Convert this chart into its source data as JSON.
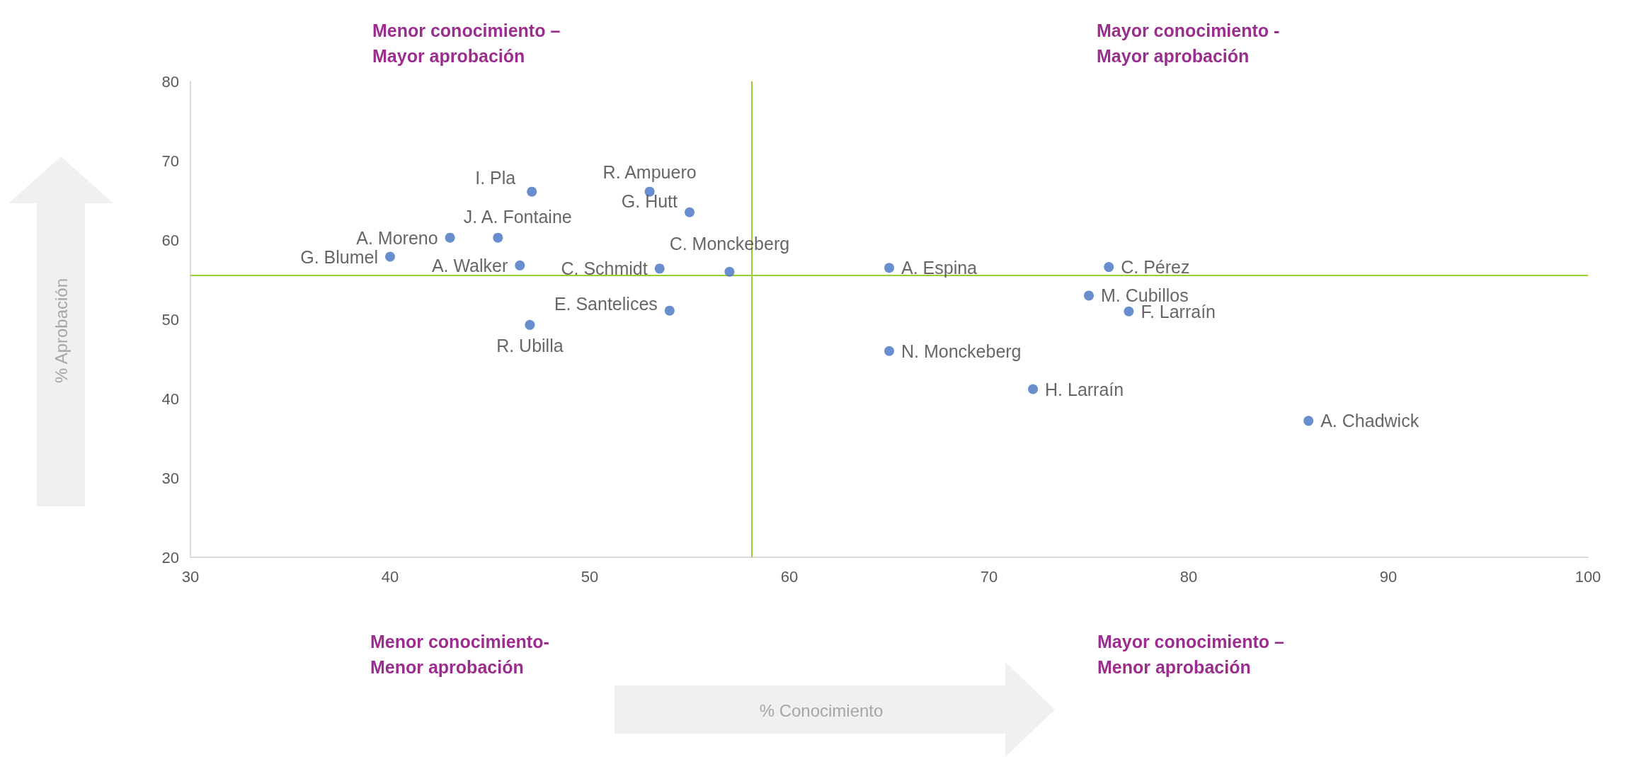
{
  "chart_data": {
    "type": "scatter",
    "annotations": [
      "Menor conocimiento –\nMayor aprobación",
      "Mayor conocimiento -\nMayor aprobación",
      "Menor conocimiento-\nMenor aprobación",
      "Mayor conocimiento –\nMenor aprobación",
      "% Conocimiento",
      "% Aprobación"
    ],
    "series": [
      {
        "color": "#4472c4",
        "x": [
          47.1,
          53.0,
          55.0,
          43.0,
          45.4,
          40.0,
          46.5,
          53.5,
          57.0,
          54.0,
          47.0,
          65.0,
          76.0,
          75.0,
          77.0,
          65.0,
          72.2,
          86.0
        ],
        "values": [
          66.1,
          66.1,
          63.5,
          60.3,
          60.3,
          57.9,
          56.8,
          56.4,
          56.0,
          51.1,
          49.3,
          56.5,
          56.6,
          53.0,
          51.0,
          46.0,
          41.2,
          37.2
        ],
        "value_labels": [
          "I. Pla",
          "R. Ampuero",
          "G. Hutt",
          "A. Moreno",
          "J. A. Fontaine",
          "G. Blumel",
          "A. Walker",
          "C. Schmidt",
          "C. Monckeberg",
          "E. Santelices",
          "R. Ubilla",
          "A. Espina",
          "C. Pérez",
          "M. Cubillos",
          "F. Larraín",
          "N. Monckeberg",
          "H. Larraín",
          "A. Chadwick"
        ]
      }
    ],
    "xlim": [
      30,
      100
    ],
    "xticks": [
      30,
      40,
      50,
      60,
      70,
      80,
      90,
      100
    ],
    "ylim": [
      20,
      80
    ],
    "yticks": [
      20,
      30,
      40,
      50,
      60,
      70,
      80
    ],
    "ref_lines": [
      {
        "axis": "x",
        "value": 58.1,
        "color": "#9acd32"
      },
      {
        "axis": "y",
        "value": 55.6,
        "color": "#9acd32"
      }
    ],
    "marker": "circle",
    "grid": false
  }
}
